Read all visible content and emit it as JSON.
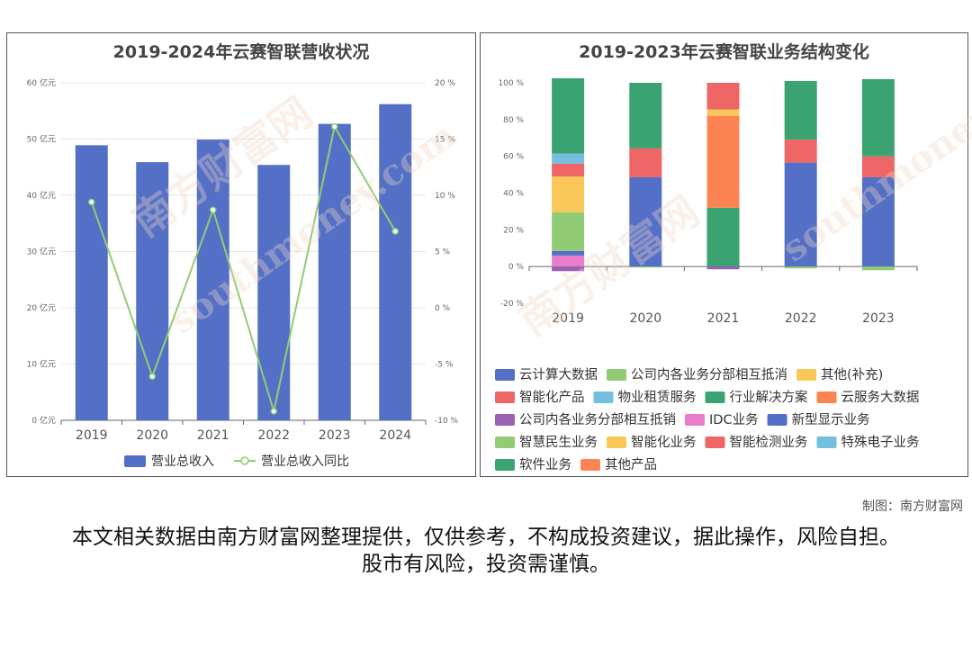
{
  "panel1": {
    "title": "2019-2024年云赛智联营收状况",
    "chart_data": {
      "type": "bar",
      "categories": [
        "2019",
        "2020",
        "2021",
        "2022",
        "2023",
        "2024"
      ],
      "series": [
        {
          "name": "营业总收入",
          "type": "bar",
          "axis": "left",
          "values": [
            48.9,
            45.9,
            49.9,
            45.4,
            52.7,
            56.2
          ],
          "color": "#5470c6"
        },
        {
          "name": "营业总收入同比",
          "type": "line",
          "axis": "right",
          "values": [
            9.4,
            -6.1,
            8.7,
            -9.2,
            16.1,
            6.8
          ],
          "color": "#91cc75"
        }
      ],
      "left_ticks": [
        "0 亿元",
        "10 亿元",
        "20 亿元",
        "30 亿元",
        "40 亿元",
        "50 亿元",
        "60 亿元"
      ],
      "right_ticks": [
        "-10 %",
        "-5 %",
        "0 %",
        "5 %",
        "10 %",
        "15 %",
        "20 %"
      ],
      "ylim_left": [
        0,
        60
      ],
      "ylim_right": [
        -10,
        20
      ],
      "grid": true,
      "legend_position": "bottom"
    }
  },
  "panel2": {
    "title": "2019-2023年云赛智联业务结构变化",
    "chart_data": {
      "type": "bar",
      "stacked": true,
      "categories": [
        "2019",
        "2020",
        "2021",
        "2022",
        "2023"
      ],
      "y_ticks": [
        "-20 %",
        "0 %",
        "20 %",
        "40 %",
        "60 %",
        "80 %",
        "100 %"
      ],
      "ylim": [
        -20,
        100
      ],
      "grid": false,
      "legend_position": "bottom",
      "series": [
        {
          "name": "云计算大数据",
          "color": "#5470c6",
          "values": [
            0,
            48.6,
            0,
            56.6,
            48.6
          ]
        },
        {
          "name": "公司内各业务分部相互抵消",
          "color": "#91cc75",
          "values": [
            0,
            -0.5,
            0,
            -1.0,
            -2.0
          ]
        },
        {
          "name": "其他(补充)",
          "color": "#fac858",
          "values": [
            0,
            0,
            0,
            0,
            0
          ]
        },
        {
          "name": "智能化产品",
          "color": "#ee6666",
          "values": [
            0,
            15.7,
            0,
            12.5,
            11.4
          ]
        },
        {
          "name": "物业租赁服务",
          "color": "#73c0de",
          "values": [
            0,
            0,
            0,
            0,
            0
          ]
        },
        {
          "name": "行业解决方案",
          "color": "#3ba272",
          "values": [
            0,
            35.7,
            32.0,
            31.9,
            42.0
          ]
        },
        {
          "name": "云服务大数据",
          "color": "#fc8452",
          "values": [
            0,
            0,
            50.0,
            0,
            0
          ]
        },
        {
          "name": "公司内各业务分部相互抵销",
          "color": "#9a60b4",
          "values": [
            -2.5,
            0,
            -1.5,
            0,
            0
          ]
        },
        {
          "name": "IDC业务",
          "color": "#ea7ccc",
          "values": [
            6.0,
            0,
            0,
            0,
            0
          ]
        },
        {
          "name": "新型显示业务",
          "color": "#5470c6",
          "values": [
            2.5,
            0,
            0,
            0,
            0
          ]
        },
        {
          "name": "智慧民生业务",
          "color": "#91cc75",
          "values": [
            21.0,
            0,
            0,
            0,
            0
          ]
        },
        {
          "name": "智能化业务",
          "color": "#fac858",
          "values": [
            19.5,
            0,
            3.5,
            0,
            0
          ]
        },
        {
          "name": "智能检测业务",
          "color": "#ee6666",
          "values": [
            7.0,
            0,
            14.5,
            0,
            0
          ]
        },
        {
          "name": "特殊电子业务",
          "color": "#73c0de",
          "values": [
            5.5,
            0,
            0,
            0,
            0
          ]
        },
        {
          "name": "软件业务",
          "color": "#3ba272",
          "values": [
            41.0,
            0,
            0,
            0,
            0
          ]
        },
        {
          "name": "其他产品",
          "color": "#fc8452",
          "values": [
            0,
            0,
            0,
            0,
            0
          ]
        }
      ]
    }
  },
  "credit": "制图：南方财富网",
  "disclaimer": "本文相关数据由南方财富网整理提供，仅供参考，不构成投资建议，据此操作，风险自担。股市有风险，投资需谨慎。",
  "watermarks": [
    "南方财富网",
    "southmoney.com"
  ]
}
